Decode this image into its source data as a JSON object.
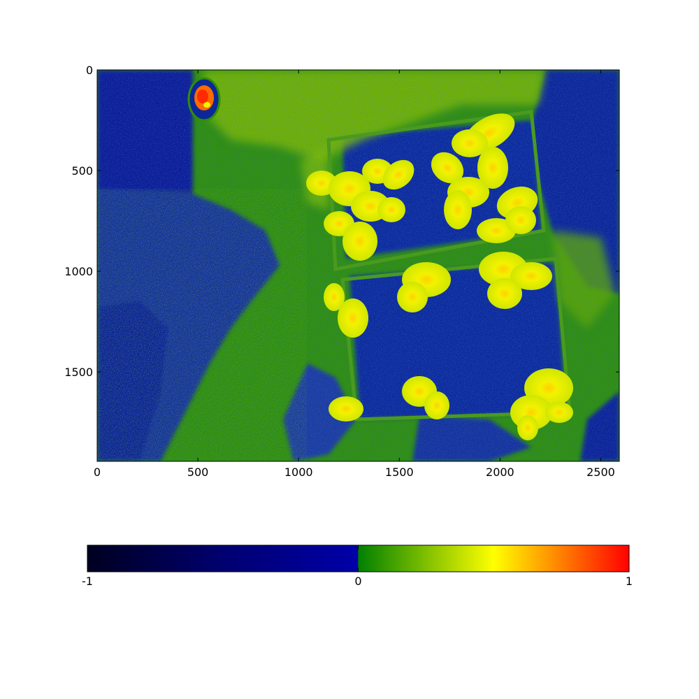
{
  "chart_data": {
    "type": "heatmap",
    "image": {
      "description_colors": {
        "background_negative": "#0a2a9a",
        "ground_low": "#2a8a00",
        "moss_mid": "#7ab800",
        "leaf_high": "#e6f000",
        "leaf_peak": "#ffb000",
        "hot": "#ff2a00"
      },
      "x_ticks": [
        0,
        500,
        1000,
        1500,
        2000,
        2500
      ],
      "y_ticks": [
        0,
        500,
        1000,
        1500
      ],
      "xlim": [
        0,
        2592
      ],
      "ylim": [
        1944,
        0
      ],
      "grid": false
    },
    "colorbar": {
      "orientation": "horizontal",
      "range": [
        -1,
        1
      ],
      "tick_labels": [
        "-1",
        "0",
        "1"
      ],
      "stops": [
        {
          "v": -1.0,
          "color": "#000020"
        },
        {
          "v": -0.5,
          "color": "#000070"
        },
        {
          "v": -0.001,
          "color": "#0000a8"
        },
        {
          "v": 0.0,
          "color": "#008000"
        },
        {
          "v": 0.5,
          "color": "#ffff00"
        },
        {
          "v": 1.0,
          "color": "#ff0000"
        }
      ]
    }
  }
}
